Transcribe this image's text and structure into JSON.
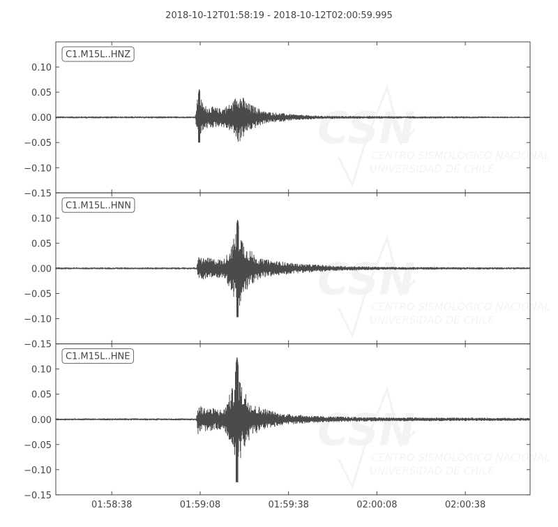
{
  "chart_data": {
    "type": "line",
    "title": "2018-10-12T01:58:19  -  2018-10-12T02:00:59.995",
    "time_range": [
      "01:58:19",
      "02:00:59.995"
    ],
    "xticks": [
      "01:58:38",
      "01:59:08",
      "01:59:38",
      "02:00:08",
      "02:00:38"
    ],
    "ylim": [
      -0.15,
      0.15
    ],
    "yticks": [
      "0.10",
      "0.05",
      "0.00",
      "−0.05",
      "−0.10",
      "−0.15"
    ],
    "ytick_values": [
      0.1,
      0.05,
      0.0,
      -0.05,
      -0.1,
      -0.15
    ],
    "line_color": "#4b4b4b",
    "grid": false,
    "watermark": [
      "CSN",
      "CENTRO SISMOLÓGICO NACIONAL",
      "UNIVERSIDAD DE CHILE"
    ],
    "traces": [
      {
        "name": "C1.M15L..HNZ",
        "envelope": [
          [
            "01:58:19",
            0.002
          ],
          [
            "01:59:06.3",
            0.002
          ],
          [
            "01:59:07",
            0.035
          ],
          [
            "01:59:07.7",
            0.057
          ],
          [
            "01:59:09",
            0.025
          ],
          [
            "01:59:15",
            0.018
          ],
          [
            "01:59:19",
            0.03
          ],
          [
            "01:59:21",
            0.053
          ],
          [
            "01:59:24",
            0.03
          ],
          [
            "01:59:30",
            0.012
          ],
          [
            "01:59:40",
            0.006
          ],
          [
            "01:59:50",
            0.003
          ],
          [
            "02:00:59",
            0.0015
          ]
        ],
        "min_peak": -0.05
      },
      {
        "name": "C1.M15L..HNN",
        "envelope": [
          [
            "01:58:19",
            0.002
          ],
          [
            "01:59:06.8",
            0.002
          ],
          [
            "01:59:07.5",
            0.025
          ],
          [
            "01:59:09",
            0.022
          ],
          [
            "01:59:16",
            0.018
          ],
          [
            "01:59:19",
            0.05
          ],
          [
            "01:59:20.7",
            0.097
          ],
          [
            "01:59:23",
            0.05
          ],
          [
            "01:59:28",
            0.02
          ],
          [
            "01:59:40",
            0.01
          ],
          [
            "01:59:55",
            0.005
          ],
          [
            "02:00:10",
            0.003
          ],
          [
            "02:00:59",
            0.002
          ]
        ],
        "min_peak": -0.097
      },
      {
        "name": "C1.M15L..HNE",
        "envelope": [
          [
            "01:58:19",
            0.002
          ],
          [
            "01:59:06.7",
            0.002
          ],
          [
            "01:59:07.3",
            0.03
          ],
          [
            "01:59:09",
            0.025
          ],
          [
            "01:59:16",
            0.02
          ],
          [
            "01:59:19",
            0.065
          ],
          [
            "01:59:20.5",
            0.125
          ],
          [
            "01:59:22",
            0.07
          ],
          [
            "01:59:26",
            0.03
          ],
          [
            "01:59:35",
            0.012
          ],
          [
            "01:59:50",
            0.006
          ],
          [
            "02:00:10",
            0.004
          ],
          [
            "02:00:59",
            0.003
          ]
        ],
        "min_peak": -0.125
      }
    ]
  }
}
